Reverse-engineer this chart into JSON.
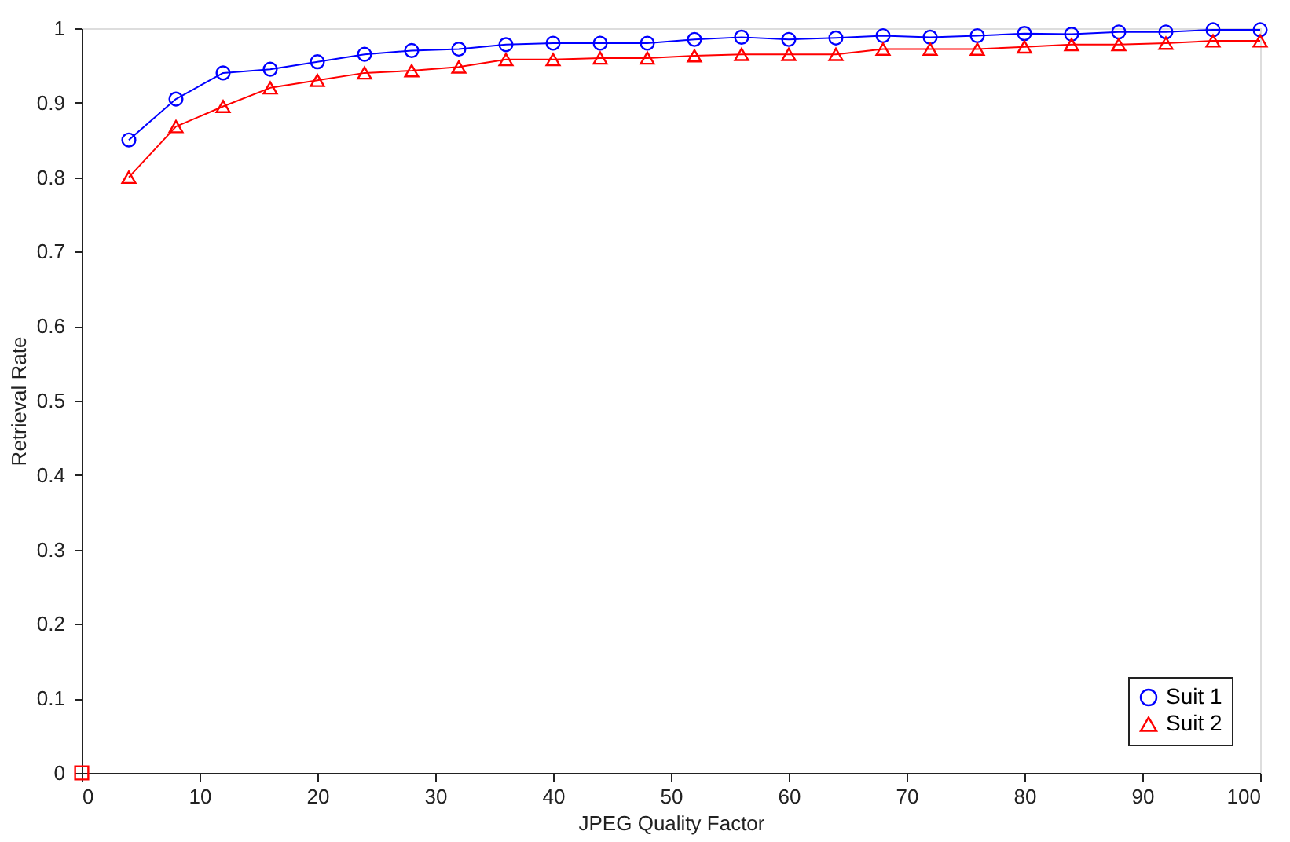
{
  "chart_data": {
    "type": "line",
    "xlabel": "JPEG Quality Factor",
    "ylabel": "Retrieval Rate",
    "xlim": [
      0,
      100
    ],
    "xticks": [
      0,
      10,
      20,
      30,
      40,
      50,
      60,
      70,
      80,
      90,
      100
    ],
    "ylim": [
      0,
      1
    ],
    "yticks": [
      0,
      0.1,
      0.2,
      0.3,
      0.4,
      0.5,
      0.6,
      0.7,
      0.8,
      0.9,
      1
    ],
    "grid": false,
    "legend": "bottom right",
    "x": [
      4,
      8,
      12,
      16,
      20,
      24,
      28,
      32,
      36,
      40,
      44,
      48,
      52,
      56,
      60,
      64,
      68,
      72,
      76,
      80,
      84,
      88,
      92,
      96,
      100
    ],
    "series": [
      {
        "name": "Suit 1",
        "color": "#0000ff",
        "marker": "circle",
        "line_style": "solid",
        "values": [
          0.85,
          0.905,
          0.94,
          0.945,
          0.955,
          0.965,
          0.97,
          0.972,
          0.978,
          0.98,
          0.98,
          0.98,
          0.985,
          0.988,
          0.985,
          0.987,
          0.99,
          0.988,
          0.99,
          0.993,
          0.992,
          0.995,
          0.995,
          0.998,
          0.998
        ]
      },
      {
        "name": "Suit 2",
        "color": "#ff0000",
        "marker": "triangle",
        "line_style": "solid",
        "values": [
          0.8,
          0.868,
          0.895,
          0.92,
          0.93,
          0.94,
          0.943,
          0.948,
          0.958,
          0.958,
          0.96,
          0.96,
          0.963,
          0.965,
          0.965,
          0.965,
          0.972,
          0.972,
          0.972,
          0.975,
          0.978,
          0.978,
          0.98,
          0.983,
          0.983
        ]
      },
      {
        "type": "scatter",
        "color": "#ff0000",
        "marker": "square",
        "x": [
          0
        ],
        "values": [
          0
        ]
      }
    ]
  }
}
